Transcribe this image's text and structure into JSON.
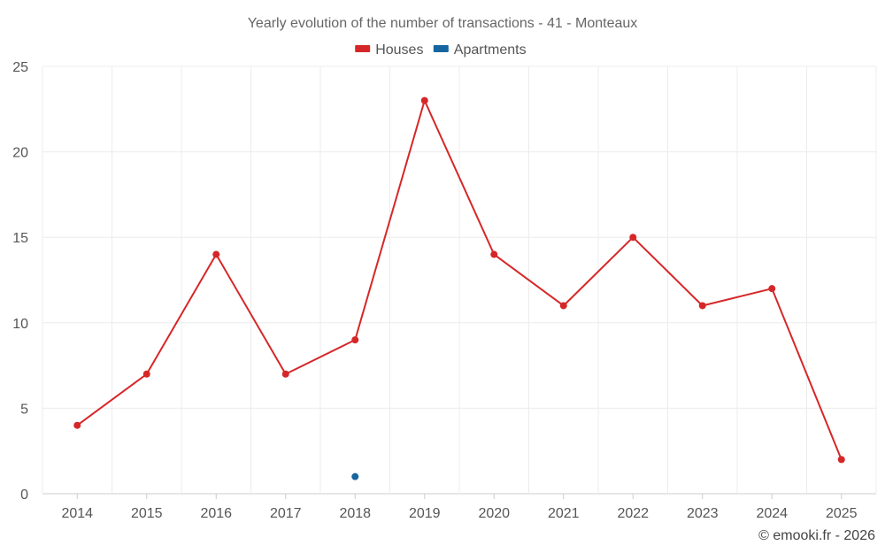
{
  "chart_data": {
    "type": "line",
    "title": "Yearly evolution of the number of transactions - 41 - Monteaux",
    "categories": [
      "2014",
      "2015",
      "2016",
      "2017",
      "2018",
      "2019",
      "2020",
      "2021",
      "2022",
      "2023",
      "2024",
      "2025"
    ],
    "series": [
      {
        "name": "Houses",
        "color": "#d62728",
        "values": [
          4,
          7,
          14,
          7,
          9,
          23,
          14,
          11,
          15,
          11,
          12,
          2
        ]
      },
      {
        "name": "Apartments",
        "color": "#1565a0",
        "values": [
          null,
          null,
          null,
          null,
          1,
          null,
          null,
          null,
          null,
          null,
          null,
          null
        ]
      }
    ],
    "ylim": [
      0,
      25
    ],
    "yticks": [
      0,
      5,
      10,
      15,
      20,
      25
    ],
    "xlabel": "",
    "ylabel": "",
    "grid": true,
    "legend_position": "top-center"
  },
  "footer": {
    "credit": "© emooki.fr - 2026"
  }
}
